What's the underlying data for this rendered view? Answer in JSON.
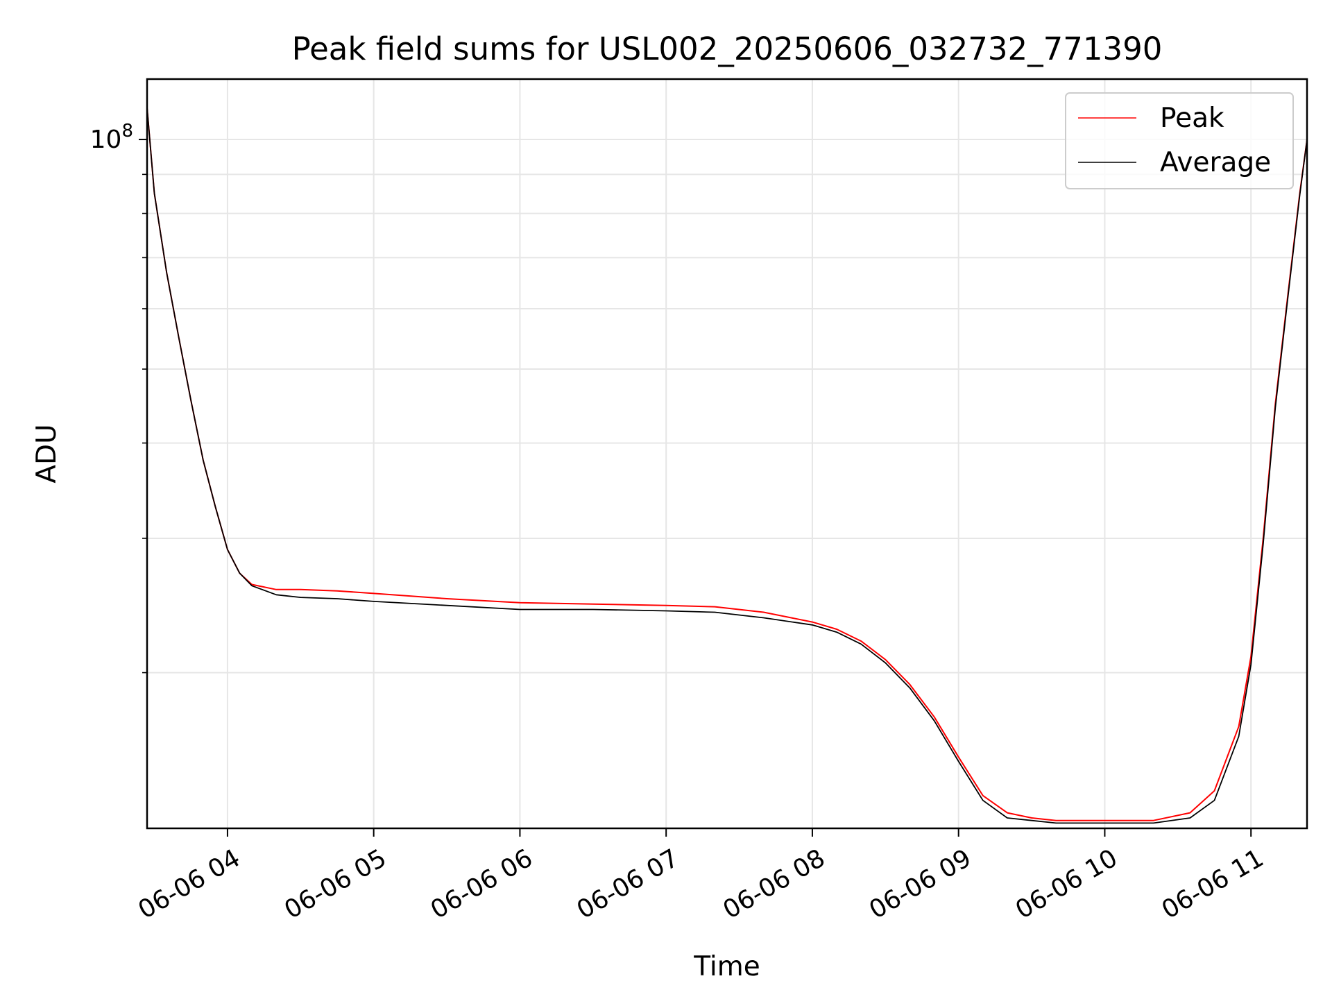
{
  "chart_data": {
    "type": "line",
    "title": "Peak field sums for USL002_20250606_032732_771390",
    "xlabel": "Time",
    "ylabel": "ADU",
    "yscale": "log",
    "ylim": [
      12500000,
      120000000
    ],
    "y_ticks": [
      {
        "value": 100000000,
        "base": "10",
        "exp": "8"
      }
    ],
    "y_minor_ticks": [
      20000000,
      30000000,
      40000000,
      50000000,
      60000000,
      70000000,
      80000000,
      90000000
    ],
    "x_ticks": [
      "06-06 04",
      "06-06 05",
      "06-06 06",
      "06-06 07",
      "06-06 08",
      "06-06 09",
      "06-06 10",
      "06-06 11"
    ],
    "xlim": [
      "2025-06-06 03:27",
      "2025-06-06 11:23"
    ],
    "grid": true,
    "legend_position": "upper-right",
    "series": [
      {
        "name": "Peak",
        "color": "#ff0000",
        "x": [
          "03:27",
          "03:30",
          "03:35",
          "03:40",
          "03:45",
          "03:50",
          "03:55",
          "04:00",
          "04:05",
          "04:10",
          "04:20",
          "04:30",
          "04:45",
          "05:00",
          "05:30",
          "06:00",
          "06:30",
          "07:00",
          "07:20",
          "07:40",
          "08:00",
          "08:10",
          "08:20",
          "08:30",
          "08:40",
          "08:50",
          "09:00",
          "09:10",
          "09:20",
          "09:30",
          "09:40",
          "10:00",
          "10:20",
          "10:35",
          "10:45",
          "10:55",
          "11:00",
          "11:05",
          "11:10",
          "11:15",
          "11:20",
          "11:23"
        ],
        "y": [
          110000000,
          85000000,
          67000000,
          55000000,
          45500000,
          38000000,
          33000000,
          29000000,
          27000000,
          26100000,
          25700000,
          25700000,
          25600000,
          25400000,
          25000000,
          24700000,
          24600000,
          24500000,
          24400000,
          24000000,
          23300000,
          22800000,
          22000000,
          20800000,
          19300000,
          17500000,
          15500000,
          13800000,
          13100000,
          12900000,
          12800000,
          12800000,
          12800000,
          13100000,
          14000000,
          17000000,
          21000000,
          30000000,
          45000000,
          62000000,
          85000000,
          100000000
        ]
      },
      {
        "name": "Average",
        "color": "#000000",
        "x": [
          "03:27",
          "03:30",
          "03:35",
          "03:40",
          "03:45",
          "03:50",
          "03:55",
          "04:00",
          "04:05",
          "04:10",
          "04:20",
          "04:30",
          "04:45",
          "05:00",
          "05:30",
          "06:00",
          "06:30",
          "07:00",
          "07:20",
          "07:40",
          "08:00",
          "08:10",
          "08:20",
          "08:30",
          "08:40",
          "08:50",
          "09:00",
          "09:10",
          "09:20",
          "09:30",
          "09:40",
          "10:00",
          "10:20",
          "10:35",
          "10:45",
          "10:55",
          "11:00",
          "11:05",
          "11:10",
          "11:15",
          "11:20",
          "11:23"
        ],
        "y": [
          110000000,
          85000000,
          67000000,
          55000000,
          45500000,
          38000000,
          33000000,
          29000000,
          27000000,
          26000000,
          25300000,
          25100000,
          25000000,
          24800000,
          24500000,
          24200000,
          24200000,
          24100000,
          24000000,
          23600000,
          23100000,
          22600000,
          21800000,
          20600000,
          19100000,
          17300000,
          15300000,
          13600000,
          12900000,
          12800000,
          12700000,
          12700000,
          12700000,
          12900000,
          13600000,
          16500000,
          20500000,
          29500000,
          44500000,
          61500000,
          84500000,
          100000000
        ]
      }
    ]
  }
}
